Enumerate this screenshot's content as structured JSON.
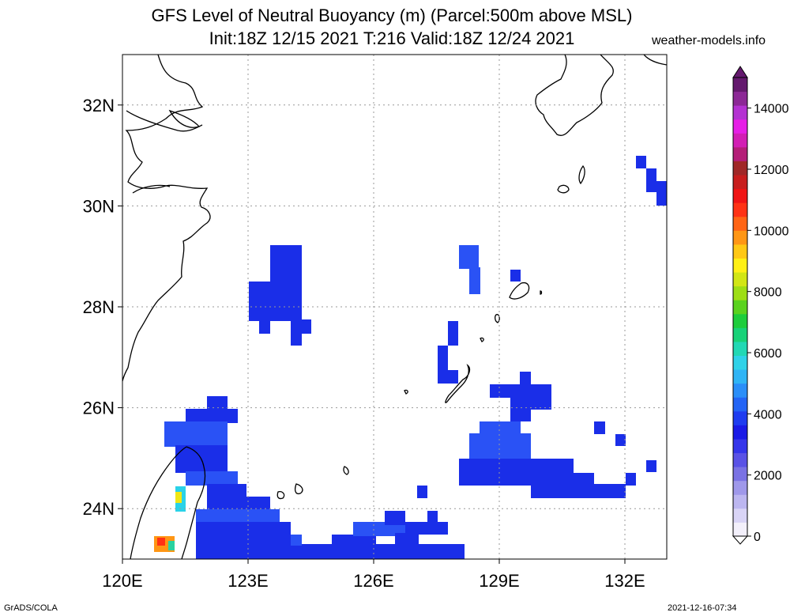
{
  "header": {
    "title_line1": "GFS Level of Neutral Buoyancy (m) (Parcel:500m above MSL)",
    "title_line2": "Init:18Z 12/15 2021 T:216 Valid:18Z 12/24 2021",
    "site": "weather-models.info"
  },
  "map": {
    "lat_ticks": [
      {
        "value": 32,
        "label": "32N"
      },
      {
        "value": 30,
        "label": "30N"
      },
      {
        "value": 28,
        "label": "28N"
      },
      {
        "value": 26,
        "label": "26N"
      },
      {
        "value": 24,
        "label": "24N"
      }
    ],
    "lon_ticks": [
      {
        "value": 120,
        "label": "120E"
      },
      {
        "value": 123,
        "label": "123E"
      },
      {
        "value": 126,
        "label": "126E"
      },
      {
        "value": 129,
        "label": "129E"
      },
      {
        "value": 132,
        "label": "132E"
      }
    ],
    "extent": {
      "lon_min": 120,
      "lon_max": 133,
      "lat_min": 23,
      "lat_max": 33
    },
    "field_color": "#1a2ee8",
    "field_color_alt": "#2a52f5"
  },
  "colorbar": {
    "labels": [
      {
        "value": 14000,
        "label": "14000"
      },
      {
        "value": 12000,
        "label": "12000"
      },
      {
        "value": 10000,
        "label": "10000"
      },
      {
        "value": 8000,
        "label": "8000"
      },
      {
        "value": 6000,
        "label": "6000"
      },
      {
        "value": 4000,
        "label": "4000"
      },
      {
        "value": 2000,
        "label": "2000"
      },
      {
        "value": 0,
        "label": "0"
      }
    ],
    "colors": [
      "#f3f0fb",
      "#d9d4f6",
      "#bcb6f0",
      "#9f98ea",
      "#7a72e4",
      "#5a52e6",
      "#3535ea",
      "#1a1ae6",
      "#1e3cf0",
      "#2364f5",
      "#2a8ef8",
      "#2fb4f5",
      "#2fd2e8",
      "#22d8b4",
      "#18d278",
      "#1ecd3c",
      "#5ad21e",
      "#9ede14",
      "#d2e614",
      "#fff014",
      "#ffc814",
      "#ff9614",
      "#ff6414",
      "#ff3214",
      "#f01414",
      "#c81e1e",
      "#a02828",
      "#b41e78",
      "#d21eb4",
      "#e61ee6",
      "#b432d2",
      "#8c2896",
      "#64196e"
    ]
  },
  "footer": {
    "credit": "GrADS/COLA",
    "timestamp": "2021-12-16-07:34"
  }
}
